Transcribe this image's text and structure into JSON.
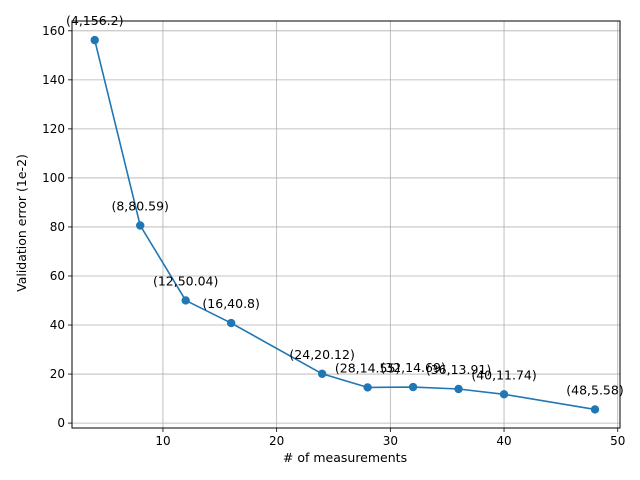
{
  "chart_data": {
    "type": "line",
    "xlabel": "# of measurements",
    "ylabel": "Validation error (1e-2)",
    "xlim": [
      2,
      50.2
    ],
    "ylim": [
      -2,
      164
    ],
    "xticks": [
      10,
      20,
      30,
      40,
      50
    ],
    "yticks": [
      0,
      20,
      40,
      60,
      80,
      100,
      120,
      140,
      160
    ],
    "grid": true,
    "color": "#1f77b4",
    "series": [
      {
        "x": [
          4,
          8,
          12,
          16,
          24,
          28,
          32,
          36,
          40,
          48
        ],
        "y": [
          156.2,
          80.59,
          50.04,
          40.8,
          20.12,
          14.55,
          14.69,
          13.91,
          11.74,
          5.58
        ],
        "labels": [
          "(4,156.2)",
          "(8,80.59)",
          "(12,50.04)",
          "(16,40.8)",
          "(24,20.12)",
          "(28,14.55)",
          "(32,14.69)",
          "(36,13.91)",
          "(40,11.74)",
          "(48,5.58)"
        ]
      }
    ]
  }
}
